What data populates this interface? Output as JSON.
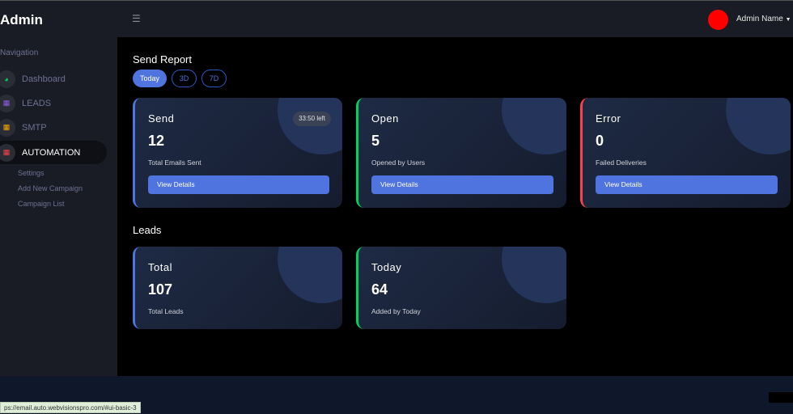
{
  "header": {
    "brand": "Admin",
    "menu_icon": "hamburger-icon",
    "user_name": "Admin Name",
    "avatar_color": "#ff0000"
  },
  "sidebar": {
    "section": "Navigation",
    "items": [
      {
        "label": "Dashboard",
        "icon": "speedometer-icon",
        "color": "#00d25b"
      },
      {
        "label": "LEADS",
        "icon": "contact-card-icon",
        "color": "#8f5fe8"
      },
      {
        "label": "SMTP",
        "icon": "contact-card-icon",
        "color": "#ffab00"
      },
      {
        "label": "AUTOMATION",
        "icon": "contact-card-icon",
        "color": "#fc424a"
      }
    ],
    "subitems": [
      "Settings",
      "Add New Campaign",
      "Campaign List"
    ]
  },
  "send_report": {
    "title": "Send Report",
    "filters": [
      "Today",
      "3D",
      "7D"
    ],
    "active_filter": "Today",
    "cards": [
      {
        "title": "Send",
        "value": "12",
        "subtitle": "Total Emails Sent",
        "button": "View Details",
        "badge": "33:50 left",
        "accent": "#4f74e0"
      },
      {
        "title": "Open",
        "value": "5",
        "subtitle": "Opened by Users",
        "button": "View Details",
        "accent": "#00d25b"
      },
      {
        "title": "Error",
        "value": "0",
        "subtitle": "Failed Deliveries",
        "button": "View Details",
        "accent": "#fc424a"
      }
    ]
  },
  "leads": {
    "title": "Leads",
    "cards": [
      {
        "title": "Total",
        "value": "107",
        "subtitle": "Total Leads",
        "accent": "#4f74e0"
      },
      {
        "title": "Today",
        "value": "64",
        "subtitle": "Added by Today",
        "accent": "#00d25b"
      }
    ]
  },
  "status_bar": {
    "url": "ps://email.auto.webvisionspro.com/#ui-basic-3"
  }
}
